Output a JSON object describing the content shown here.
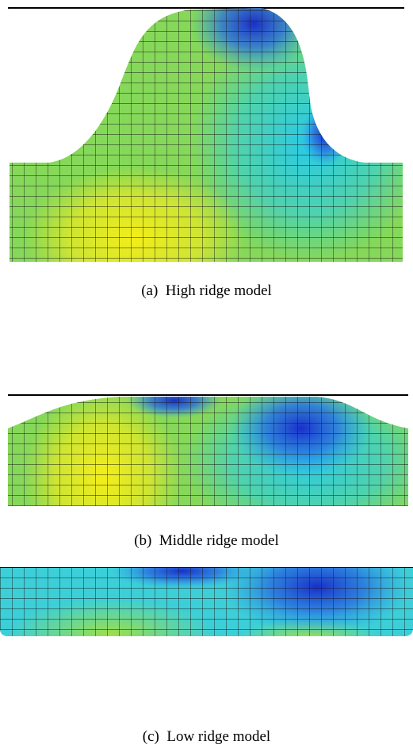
{
  "figure": {
    "panels": [
      {
        "caption": "(a)  High ridge model"
      },
      {
        "caption": "(b)  Middle ridge model"
      },
      {
        "caption": "(c)  Low ridge model"
      }
    ]
  }
}
